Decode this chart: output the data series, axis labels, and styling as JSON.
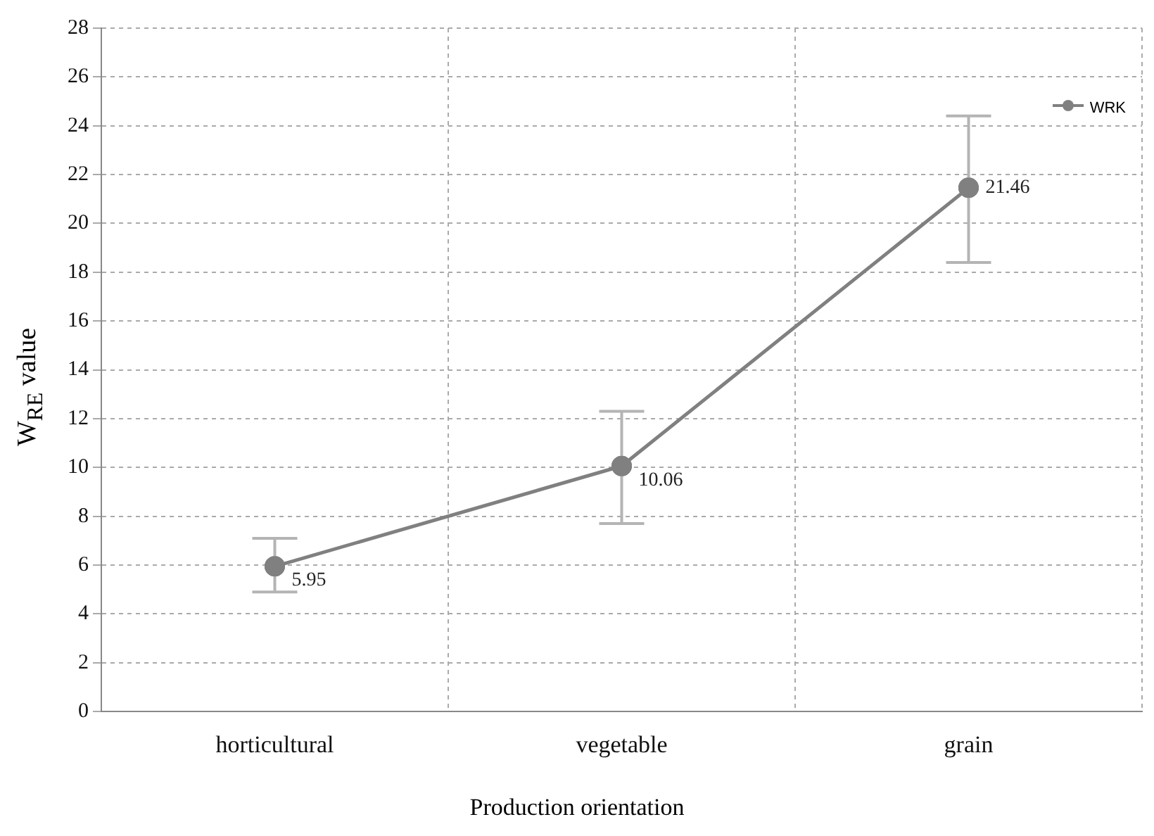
{
  "chart_data": {
    "type": "line",
    "xlabel": "Production orientation",
    "ylabel": "W$_{RE}$ value",
    "categories": [
      "horticultural",
      "vegetable",
      "grain"
    ],
    "series": [
      {
        "name": "WRK",
        "color": "#808080",
        "values": [
          5.95,
          10.06,
          21.46
        ],
        "errors": [
          [
            4.9,
            7.1
          ],
          [
            7.7,
            12.3
          ],
          [
            18.4,
            24.4
          ]
        ]
      }
    ],
    "ylim": [
      0,
      28
    ],
    "yticks": [
      0,
      2,
      4,
      6,
      8,
      10,
      12,
      14,
      16,
      18,
      20,
      22,
      24,
      26,
      28
    ],
    "grid": true,
    "legend": "top right",
    "marker": "circle",
    "line_style": "solid",
    "data_labels": true
  }
}
